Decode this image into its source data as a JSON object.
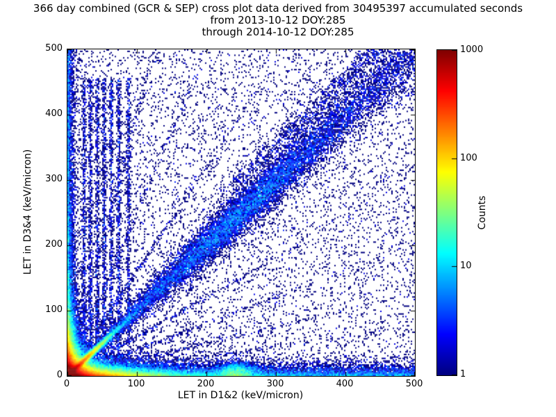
{
  "header": {
    "title_line1": "366 day combined (GCR & SEP) cross plot data derived from 30495397 accumulated seconds",
    "title_line2": "from 2013-10-12 DOY:285",
    "title_line3": "through 2014-10-12 DOY:285"
  },
  "chart_data": {
    "type": "heatmap",
    "title": "366 day combined (GCR & SEP) cross plot data derived from 30495397 accumulated seconds",
    "subtitle_lines": [
      "from 2013-10-12 DOY:285",
      "through 2014-10-12 DOY:285"
    ],
    "xlabel": "LET in D1&2 (keV/micron)",
    "ylabel": "LET in D3&4 (keV/micron)",
    "xlim": [
      0,
      500
    ],
    "ylim": [
      0,
      500
    ],
    "xticks": [
      0,
      100,
      200,
      300,
      400,
      500
    ],
    "yticks": [
      0,
      100,
      200,
      300,
      400,
      500
    ],
    "grid": false,
    "legend": "none",
    "colorbar": {
      "label": "Counts",
      "scale": "log",
      "min": 1,
      "max": 1000,
      "ticks": [
        1,
        10,
        100,
        1000
      ],
      "colormap": "jet",
      "min_color": "#000080",
      "max_color": "#800000"
    },
    "point_generation": {
      "seed": 1337,
      "bin_size_units": 2,
      "components": [
        {
          "name": "core-origin-isotropic",
          "kind": "exp2d",
          "n": 80000,
          "sx": 9,
          "sy": 9
        },
        {
          "name": "core-diagonal-ridge",
          "kind": "diag",
          "n": 26000,
          "scale": 16,
          "spread": 2
        },
        {
          "name": "core-x-axis-tail",
          "kind": "exp2d",
          "n": 34000,
          "sx": 38,
          "sy": 5
        },
        {
          "name": "core-y-axis-tail",
          "kind": "exp2d",
          "n": 20000,
          "sx": 5,
          "sy": 30
        },
        {
          "name": "origin-radial-rays",
          "kind": "rays",
          "n": 2800,
          "slopes": [
            0.15,
            0.25,
            0.4,
            0.6,
            1.6,
            2.5,
            4.0
          ],
          "scale": 130,
          "sigma": 2
        },
        {
          "name": "main-diagonal-band",
          "kind": "diag-band",
          "n": 9000,
          "tmin": 20,
          "tmax": 520,
          "spread0": 3,
          "spread_slope": 0.035
        },
        {
          "name": "mid-diagonal-cluster",
          "kind": "diag-gauss",
          "n": 6500,
          "mu": 255,
          "sigma": 75,
          "spread": 13
        },
        {
          "name": "upper-diagonal-wisp",
          "kind": "diag-offset",
          "n": 900,
          "tmin": 240,
          "tmax": 460,
          "offset": 55,
          "spread": 9
        },
        {
          "name": "bottom-horizontal-band",
          "kind": "band-x",
          "n": 14000,
          "yscale": 7,
          "x_exp_frac": 0.45,
          "x_exp_scale": 110
        },
        {
          "name": "bottom-cluster-240",
          "kind": "blob",
          "n": 2600,
          "cx": 243,
          "cy": 6,
          "sx": 14,
          "sy": 7
        },
        {
          "name": "left-vertical-band",
          "kind": "band-y",
          "n": 7000,
          "xscale": 4,
          "ymax": 500,
          "ypow": 2.2
        },
        {
          "name": "low-vertical-streaks",
          "kind": "streaks",
          "n": 4200,
          "xs": [
            24,
            33,
            43,
            53,
            63,
            74,
            88
          ],
          "sigma": 1.5,
          "ymin": 15,
          "ymax": 455
        },
        {
          "name": "sparse-background",
          "kind": "uniform",
          "n": 7500
        }
      ]
    }
  }
}
